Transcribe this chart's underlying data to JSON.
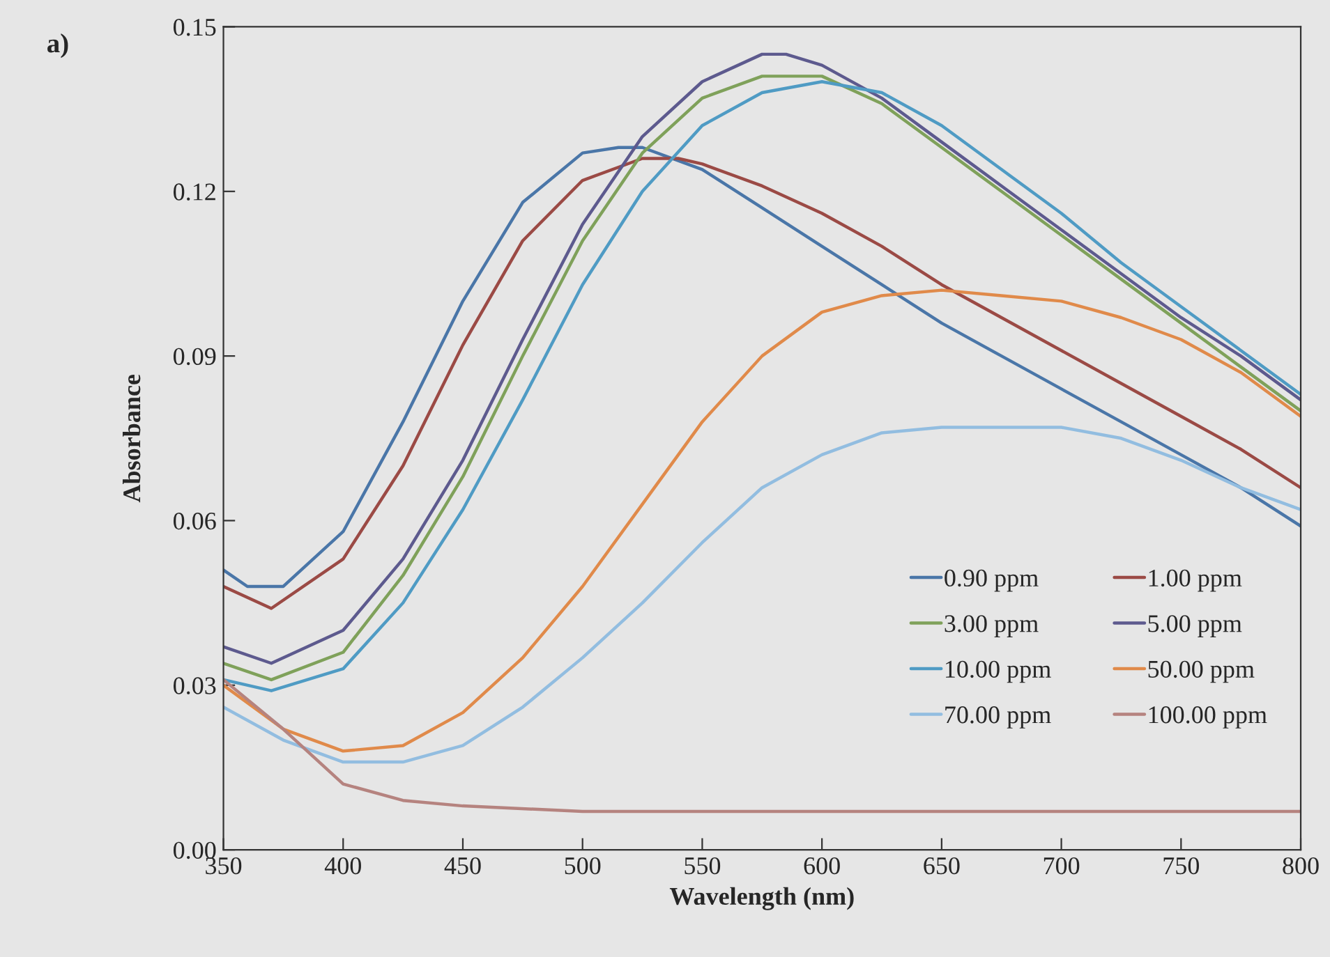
{
  "chart_data": {
    "type": "line",
    "xlabel": "Wavelength (nm)",
    "ylabel": "Absorbance",
    "annotations": [
      "a)"
    ],
    "xlim": [
      350,
      800
    ],
    "xticks": [
      350,
      400,
      450,
      500,
      550,
      600,
      650,
      700,
      750,
      800
    ],
    "ylim": [
      0,
      0.15
    ],
    "yticks": [
      {
        "value": 0,
        "label": "0.00"
      },
      {
        "value": 0.03,
        "label": "0.03"
      },
      {
        "value": 0.06,
        "label": "0.06"
      },
      {
        "value": 0.09,
        "label": "0.09"
      },
      {
        "value": 0.12,
        "label": "0.12"
      },
      {
        "value": 0.15,
        "label": "0.15"
      }
    ],
    "grid": false,
    "legend": "bottom right",
    "marker": "none",
    "line_style": "solid",
    "series": [
      {
        "name": "0.90 ppm",
        "color": "#4a76a8",
        "x": [
          350,
          360,
          375,
          400,
          425,
          450,
          475,
          500,
          515,
          525,
          550,
          575,
          600,
          625,
          650,
          675,
          700,
          725,
          750,
          775,
          800
        ],
        "values": [
          0.051,
          0.048,
          0.048,
          0.058,
          0.078,
          0.1,
          0.118,
          0.127,
          0.128,
          0.128,
          0.124,
          0.117,
          0.11,
          0.103,
          0.096,
          0.09,
          0.084,
          0.078,
          0.072,
          0.066,
          0.059
        ]
      },
      {
        "name": "1.00 ppm",
        "color": "#9b4a45",
        "x": [
          350,
          370,
          400,
          425,
          450,
          475,
          500,
          525,
          540,
          550,
          575,
          600,
          625,
          650,
          675,
          700,
          725,
          750,
          775,
          800
        ],
        "values": [
          0.048,
          0.044,
          0.053,
          0.07,
          0.092,
          0.111,
          0.122,
          0.126,
          0.126,
          0.125,
          0.121,
          0.116,
          0.11,
          0.103,
          0.097,
          0.091,
          0.085,
          0.079,
          0.073,
          0.066
        ]
      },
      {
        "name": "3.00 ppm",
        "color": "#7fa15a",
        "x": [
          350,
          370,
          400,
          425,
          450,
          475,
          500,
          525,
          550,
          575,
          590,
          600,
          625,
          650,
          675,
          700,
          725,
          750,
          775,
          800
        ],
        "values": [
          0.034,
          0.031,
          0.036,
          0.05,
          0.068,
          0.09,
          0.111,
          0.127,
          0.137,
          0.141,
          0.141,
          0.141,
          0.136,
          0.128,
          0.12,
          0.112,
          0.104,
          0.096,
          0.088,
          0.08
        ]
      },
      {
        "name": "5.00 ppm",
        "color": "#5d5a8e",
        "x": [
          350,
          370,
          400,
          425,
          450,
          475,
          500,
          525,
          550,
          575,
          585,
          600,
          625,
          650,
          675,
          700,
          725,
          750,
          775,
          800
        ],
        "values": [
          0.037,
          0.034,
          0.04,
          0.053,
          0.071,
          0.093,
          0.114,
          0.13,
          0.14,
          0.145,
          0.145,
          0.143,
          0.137,
          0.129,
          0.121,
          0.113,
          0.105,
          0.097,
          0.09,
          0.082
        ]
      },
      {
        "name": "10.00 ppm",
        "color": "#4f9bc4",
        "x": [
          350,
          370,
          400,
          425,
          450,
          475,
          500,
          525,
          550,
          575,
          600,
          625,
          650,
          675,
          700,
          725,
          750,
          775,
          800
        ],
        "values": [
          0.031,
          0.029,
          0.033,
          0.045,
          0.062,
          0.082,
          0.103,
          0.12,
          0.132,
          0.138,
          0.14,
          0.138,
          0.132,
          0.124,
          0.116,
          0.107,
          0.099,
          0.091,
          0.083
        ]
      },
      {
        "name": "50.00 ppm",
        "color": "#e08a4a",
        "x": [
          350,
          375,
          400,
          425,
          450,
          475,
          500,
          525,
          550,
          575,
          600,
          625,
          650,
          675,
          700,
          725,
          750,
          775,
          800
        ],
        "values": [
          0.03,
          0.022,
          0.018,
          0.019,
          0.025,
          0.035,
          0.048,
          0.063,
          0.078,
          0.09,
          0.098,
          0.101,
          0.102,
          0.101,
          0.1,
          0.097,
          0.093,
          0.087,
          0.079
        ]
      },
      {
        "name": "70.00 ppm",
        "color": "#92bde0",
        "x": [
          350,
          375,
          400,
          425,
          450,
          475,
          500,
          525,
          550,
          575,
          600,
          625,
          650,
          675,
          700,
          725,
          750,
          775,
          800
        ],
        "values": [
          0.026,
          0.02,
          0.016,
          0.016,
          0.019,
          0.026,
          0.035,
          0.045,
          0.056,
          0.066,
          0.072,
          0.076,
          0.077,
          0.077,
          0.077,
          0.075,
          0.071,
          0.066,
          0.062
        ]
      },
      {
        "name": "100.00 ppm",
        "color": "#b5837f",
        "x": [
          350,
          375,
          400,
          425,
          450,
          500,
          550,
          600,
          650,
          700,
          750,
          800
        ],
        "values": [
          0.031,
          0.022,
          0.012,
          0.009,
          0.008,
          0.007,
          0.007,
          0.007,
          0.007,
          0.007,
          0.007,
          0.007
        ]
      }
    ]
  }
}
